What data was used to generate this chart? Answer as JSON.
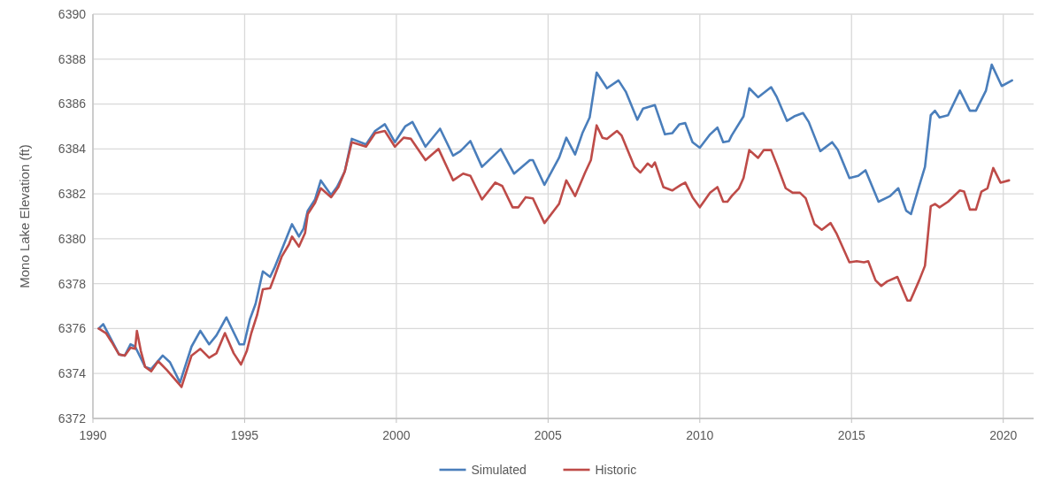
{
  "chart_data": {
    "type": "line",
    "ylabel": "Mono Lake Elevation (ft)",
    "xlim": [
      1990,
      2021
    ],
    "xticks": [
      1990,
      1995,
      2000,
      2005,
      2010,
      2015,
      2020
    ],
    "ylim": [
      6372,
      6390
    ],
    "yticks": [
      6372,
      6374,
      6376,
      6378,
      6380,
      6382,
      6384,
      6386,
      6388,
      6390
    ],
    "grid": true,
    "legend": "bottom",
    "line_style": "solid",
    "marker": "none",
    "series": [
      {
        "name": "Simulated",
        "color": "#4a7ebb",
        "x": [
          1990.19,
          1990.34,
          1990.86,
          1991.05,
          1991.24,
          1991.39,
          1991.72,
          1991.92,
          1992.3,
          1992.54,
          1992.87,
          1993.25,
          1993.54,
          1993.83,
          1994.07,
          1994.4,
          1994.83,
          1994.98,
          1995.17,
          1995.36,
          1995.6,
          1995.84,
          1995.98,
          1996.22,
          1996.56,
          1996.79,
          1996.94,
          1997.08,
          1997.32,
          1997.51,
          1997.85,
          1998.04,
          1998.3,
          1998.53,
          1999.0,
          1999.3,
          1999.62,
          1999.95,
          2000.29,
          2000.53,
          2000.96,
          2001.44,
          2001.87,
          2002.11,
          2002.44,
          2002.82,
          2003.44,
          2003.88,
          2004.4,
          2004.5,
          2004.88,
          2005.36,
          2005.6,
          2005.89,
          2006.13,
          2006.37,
          2006.6,
          2006.94,
          2007.32,
          2007.56,
          2007.94,
          2008.13,
          2008.52,
          2008.85,
          2009.09,
          2009.33,
          2009.52,
          2009.76,
          2010.0,
          2010.34,
          2010.58,
          2010.77,
          2010.96,
          2011.05,
          2011.44,
          2011.63,
          2011.92,
          2012.35,
          2012.54,
          2012.87,
          2013.11,
          2013.4,
          2013.59,
          2013.97,
          2014.36,
          2014.55,
          2014.93,
          2015.22,
          2015.46,
          2015.89,
          2016.27,
          2016.54,
          2016.8,
          2016.96,
          2017.23,
          2017.42,
          2017.61,
          2017.75,
          2017.9,
          2018.18,
          2018.57,
          2018.9,
          2019.1,
          2019.43,
          2019.62,
          2019.95,
          2020.29
        ],
        "values": [
          6376.0,
          6376.2,
          6374.85,
          6374.8,
          6375.3,
          6375.2,
          6374.3,
          6374.2,
          6374.8,
          6374.5,
          6373.6,
          6375.2,
          6375.9,
          6375.3,
          6375.7,
          6376.5,
          6375.3,
          6375.3,
          6376.4,
          6377.1,
          6378.55,
          6378.3,
          6378.7,
          6379.5,
          6380.65,
          6380.1,
          6380.45,
          6381.25,
          6381.75,
          6382.6,
          6381.95,
          6382.3,
          6383.0,
          6384.45,
          6384.2,
          6384.8,
          6385.1,
          6384.3,
          6385.0,
          6385.2,
          6384.1,
          6384.9,
          6383.7,
          6383.9,
          6384.35,
          6383.2,
          6384.0,
          6382.9,
          6383.5,
          6383.5,
          6382.4,
          6383.6,
          6384.5,
          6383.75,
          6384.7,
          6385.4,
          6387.4,
          6386.7,
          6387.05,
          6386.55,
          6385.3,
          6385.8,
          6385.95,
          6384.65,
          6384.7,
          6385.1,
          6385.15,
          6384.3,
          6384.05,
          6384.65,
          6384.95,
          6384.3,
          6384.35,
          6384.6,
          6385.45,
          6386.7,
          6386.3,
          6386.75,
          6386.3,
          6385.25,
          6385.45,
          6385.6,
          6385.2,
          6383.9,
          6384.3,
          6383.95,
          6382.7,
          6382.8,
          6383.05,
          6381.65,
          6381.9,
          6382.25,
          6381.25,
          6381.1,
          6382.35,
          6383.2,
          6385.5,
          6385.7,
          6385.4,
          6385.5,
          6386.6,
          6385.7,
          6385.7,
          6386.6,
          6387.75,
          6386.8,
          6387.05
        ]
      },
      {
        "name": "Historic",
        "color": "#be4b48",
        "x": [
          1990.19,
          1990.43,
          1990.62,
          1990.86,
          1991.05,
          1991.24,
          1991.39,
          1991.45,
          1991.58,
          1991.72,
          1991.92,
          1992.15,
          1992.44,
          1992.92,
          1993.25,
          1993.54,
          1993.83,
          1994.07,
          1994.35,
          1994.64,
          1994.88,
          1995.07,
          1995.22,
          1995.41,
          1995.6,
          1995.84,
          1995.98,
          1996.22,
          1996.46,
          1996.56,
          1996.79,
          1996.99,
          1997.08,
          1997.32,
          1997.51,
          1997.85,
          1998.09,
          1998.3,
          1998.53,
          1999.0,
          1999.3,
          1999.62,
          1999.95,
          2000.24,
          2000.48,
          2000.96,
          2001.39,
          2001.87,
          2002.2,
          2002.44,
          2002.82,
          2003.26,
          2003.49,
          2003.83,
          2004.02,
          2004.26,
          2004.5,
          2004.88,
          2005.36,
          2005.6,
          2005.89,
          2006.22,
          2006.41,
          2006.6,
          2006.79,
          2006.94,
          2007.13,
          2007.27,
          2007.42,
          2007.85,
          2008.04,
          2008.28,
          2008.42,
          2008.52,
          2008.8,
          2009.09,
          2009.38,
          2009.52,
          2009.76,
          2010.0,
          2010.34,
          2010.58,
          2010.77,
          2010.91,
          2011.05,
          2011.29,
          2011.44,
          2011.63,
          2011.92,
          2012.11,
          2012.35,
          2012.54,
          2012.83,
          2013.06,
          2013.3,
          2013.49,
          2013.78,
          2014.02,
          2014.31,
          2014.5,
          2014.93,
          2015.17,
          2015.41,
          2015.55,
          2015.79,
          2015.98,
          2016.17,
          2016.51,
          2016.84,
          2016.94,
          2017.23,
          2017.42,
          2017.61,
          2017.75,
          2017.9,
          2018.18,
          2018.57,
          2018.71,
          2018.9,
          2019.1,
          2019.28,
          2019.48,
          2019.67,
          2019.91,
          2020.19
        ],
        "values": [
          6376.0,
          6375.8,
          6375.4,
          6374.85,
          6374.8,
          6375.15,
          6375.1,
          6375.9,
          6375.0,
          6374.3,
          6374.1,
          6374.55,
          6374.15,
          6373.4,
          6374.8,
          6375.1,
          6374.7,
          6374.9,
          6375.8,
          6374.9,
          6374.4,
          6375.0,
          6375.8,
          6376.6,
          6377.75,
          6377.8,
          6378.3,
          6379.2,
          6379.75,
          6380.1,
          6379.65,
          6380.25,
          6381.1,
          6381.6,
          6382.25,
          6381.85,
          6382.3,
          6383.0,
          6384.3,
          6384.1,
          6384.7,
          6384.8,
          6384.1,
          6384.5,
          6384.45,
          6383.5,
          6384.0,
          6382.6,
          6382.9,
          6382.8,
          6381.75,
          6382.5,
          6382.35,
          6381.4,
          6381.4,
          6381.85,
          6381.8,
          6380.7,
          6381.55,
          6382.6,
          6381.9,
          6382.95,
          6383.5,
          6385.05,
          6384.5,
          6384.45,
          6384.65,
          6384.8,
          6384.6,
          6383.2,
          6382.95,
          6383.35,
          6383.2,
          6383.4,
          6382.3,
          6382.15,
          6382.4,
          6382.5,
          6381.85,
          6381.4,
          6382.05,
          6382.3,
          6381.65,
          6381.65,
          6381.9,
          6382.25,
          6382.7,
          6383.95,
          6383.6,
          6383.95,
          6383.95,
          6383.3,
          6382.25,
          6382.05,
          6382.05,
          6381.8,
          6380.65,
          6380.4,
          6380.7,
          6380.25,
          6378.95,
          6379.0,
          6378.95,
          6379.0,
          6378.15,
          6377.9,
          6378.1,
          6378.3,
          6377.25,
          6377.25,
          6378.15,
          6378.8,
          6381.45,
          6381.55,
          6381.4,
          6381.65,
          6382.15,
          6382.1,
          6381.3,
          6381.3,
          6382.1,
          6382.25,
          6383.15,
          6382.5,
          6382.6
        ]
      }
    ]
  }
}
